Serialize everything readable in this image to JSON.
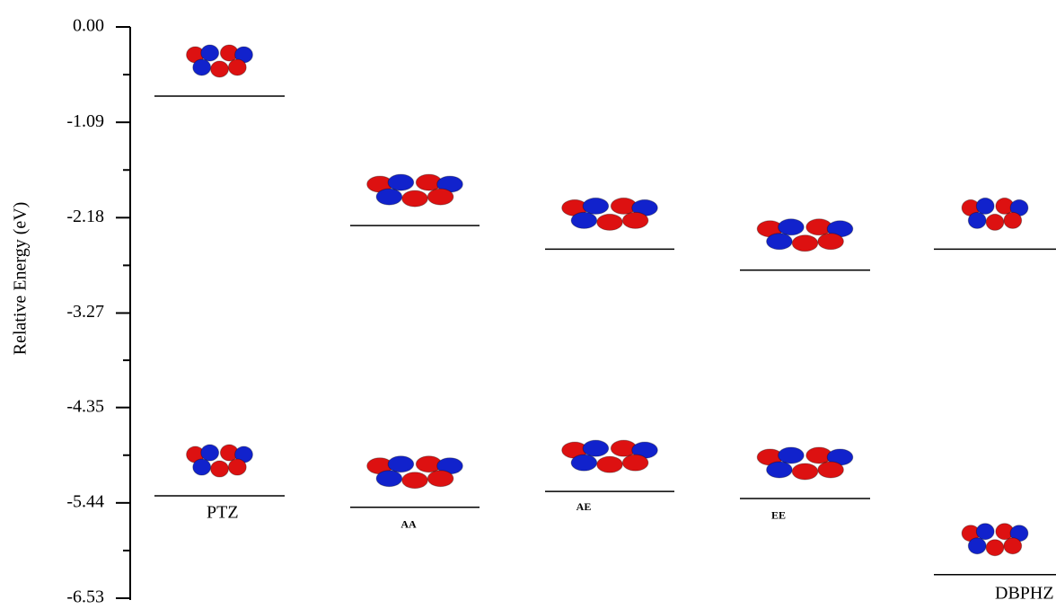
{
  "chart_data": {
    "type": "energy-levels",
    "ylabel": "Relative Energy (eV)",
    "ylim": [
      -6.53,
      0
    ],
    "yticks": [
      {
        "value": 0,
        "label": "0.00"
      },
      -1.09,
      -2.18,
      -3.27,
      -4.35,
      -5.44,
      -6.53
    ],
    "categories": [
      "PTZ",
      "AA",
      "AE",
      "EE",
      "DBPHZ"
    ],
    "series": [
      {
        "color": "#000000",
        "values": [
          -0.79,
          -2.27,
          -2.54,
          -2.78,
          -2.54
        ]
      },
      {
        "color": "#000000",
        "values": [
          -5.36,
          -5.49,
          -5.31,
          -5.39,
          -6.26
        ]
      }
    ]
  }
}
